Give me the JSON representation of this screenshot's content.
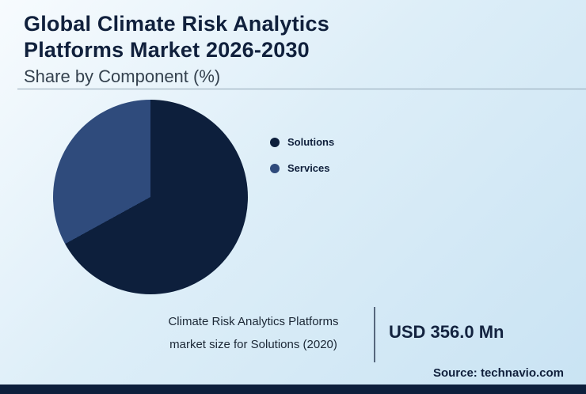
{
  "header": {
    "title_line1": "Global Climate Risk Analytics",
    "title_line2": "Platforms Market 2026-2030",
    "subtitle": "Share by Component (%)"
  },
  "chart_data": {
    "type": "pie",
    "title": "Global Climate Risk Analytics Platforms Market 2026-2030 — Share by Component (%)",
    "slices": [
      {
        "label": "Solutions",
        "value": 67,
        "color": "#0d1f3c"
      },
      {
        "label": "Services",
        "value": 33,
        "color": "#2f4b7c"
      }
    ],
    "start_angle_deg": 0,
    "legend_position": "right"
  },
  "callout": {
    "description_line1": "Climate Risk Analytics Platforms",
    "description_line2": "market size for Solutions (2020)",
    "value": "USD 356.0 Mn"
  },
  "footer": {
    "source": "Source: technavio.com"
  },
  "colors": {
    "accent_dark": "#0d1f3c",
    "accent_blue": "#2f4b7c",
    "background_top": "#f7fbfe",
    "background_bottom": "#c9e3f3"
  }
}
